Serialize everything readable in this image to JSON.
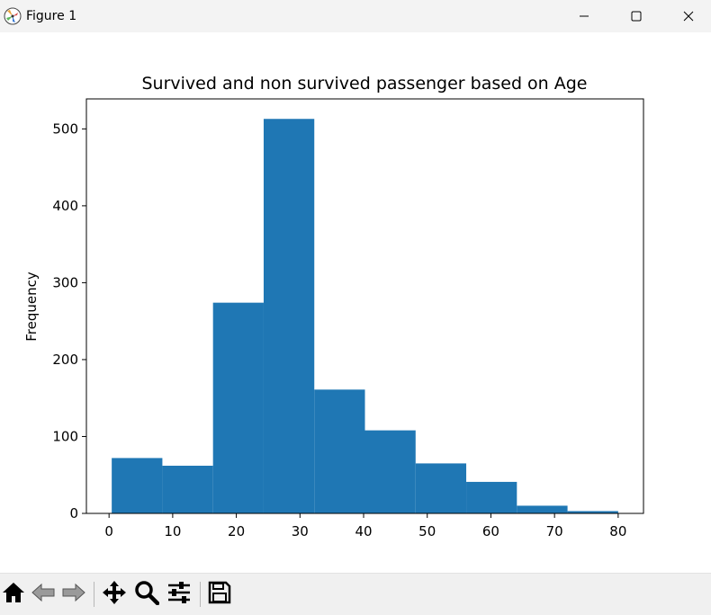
{
  "window": {
    "title": "Figure 1",
    "icons": [
      "matplotlib-logo-icon",
      "minimize-icon",
      "maximize-icon",
      "close-icon"
    ]
  },
  "toolbar": {
    "buttons": [
      "home-icon",
      "back-icon",
      "forward-icon",
      "pan-icon",
      "zoom-icon",
      "configure-subplots-icon",
      "save-icon"
    ]
  },
  "colors": {
    "bar": "#1f77b4",
    "titlebar": "#f3f3f3",
    "toolbar": "#f0f0f0"
  },
  "chart_data": {
    "type": "bar",
    "title": "Survived and non survived passenger based on Age",
    "xlabel": "",
    "ylabel": "Frequency",
    "bin_edges": [
      0.42,
      8.378,
      16.336,
      24.294,
      32.252,
      40.21,
      48.168,
      56.126,
      64.084,
      72.042,
      80.0
    ],
    "values": [
      72,
      62,
      274,
      513,
      161,
      108,
      65,
      41,
      10,
      3
    ],
    "xlim": [
      -3.56,
      83.98
    ],
    "ylim": [
      0,
      539
    ],
    "xticks": [
      0,
      10,
      20,
      30,
      40,
      50,
      60,
      70,
      80
    ],
    "yticks": [
      0,
      100,
      200,
      300,
      400,
      500
    ],
    "grid": false,
    "legend": "none"
  }
}
